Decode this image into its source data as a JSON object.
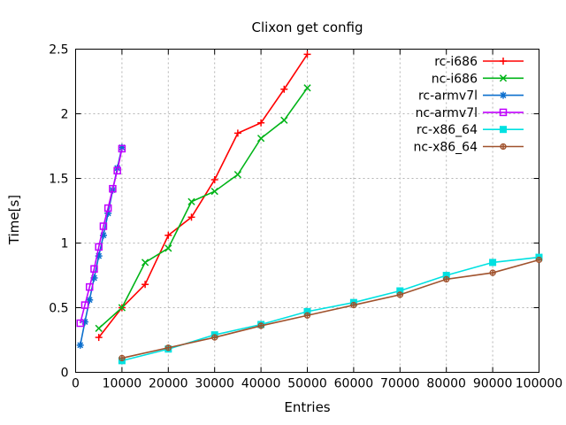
{
  "chart_data": {
    "type": "line",
    "title": "Clixon get config",
    "xlabel": "Entries",
    "ylabel": "Time[s]",
    "xlim": [
      0,
      100000
    ],
    "ylim": [
      0,
      2.5
    ],
    "xticks": [
      0,
      10000,
      20000,
      30000,
      40000,
      50000,
      60000,
      70000,
      80000,
      90000,
      100000
    ],
    "xtick_labels": [
      "0",
      "10000",
      "20000",
      "30000",
      "40000",
      "50000",
      "60000",
      "70000",
      "80000",
      "90000",
      "100000"
    ],
    "yticks": [
      0,
      0.5,
      1,
      1.5,
      2,
      2.5
    ],
    "ytick_labels": [
      "0",
      "0.5",
      "1",
      "1.5",
      "2",
      "2.5"
    ],
    "grid": true,
    "grid_color": "#b4b4b4",
    "axis_color": "#000000",
    "background_color": "#ffffff",
    "legend_position": "top-right-inside",
    "series": [
      {
        "name": "rc-i686",
        "color": "#ff0000",
        "marker": "plus",
        "x": [
          5000,
          10000,
          15000,
          20000,
          25000,
          30000,
          35000,
          40000,
          45000,
          50000
        ],
        "y": [
          0.27,
          0.5,
          0.68,
          1.06,
          1.2,
          1.49,
          1.85,
          1.93,
          2.19,
          2.46
        ]
      },
      {
        "name": "nc-i686",
        "color": "#00b418",
        "marker": "cross",
        "x": [
          5000,
          10000,
          15000,
          20000,
          25000,
          30000,
          35000,
          40000,
          45000,
          50000
        ],
        "y": [
          0.34,
          0.5,
          0.85,
          0.96,
          1.32,
          1.4,
          1.53,
          1.81,
          1.95,
          2.2
        ]
      },
      {
        "name": "rc-armv7l",
        "color": "#0b6fce",
        "marker": "asterisk",
        "x": [
          1000,
          2000,
          3000,
          4000,
          5000,
          6000,
          7000,
          8000,
          9000,
          10000
        ],
        "y": [
          0.21,
          0.39,
          0.56,
          0.73,
          0.9,
          1.06,
          1.23,
          1.41,
          1.58,
          1.74
        ]
      },
      {
        "name": "nc-armv7l",
        "color": "#c000ff",
        "marker": "open-square",
        "x": [
          1000,
          2000,
          3000,
          4000,
          5000,
          6000,
          7000,
          8000,
          9000,
          10000
        ],
        "y": [
          0.38,
          0.52,
          0.66,
          0.8,
          0.97,
          1.13,
          1.27,
          1.42,
          1.56,
          1.73
        ]
      },
      {
        "name": "rc-x86_64",
        "color": "#00e1e1",
        "marker": "filled-square",
        "x": [
          10000,
          20000,
          30000,
          40000,
          50000,
          60000,
          70000,
          80000,
          90000,
          100000
        ],
        "y": [
          0.09,
          0.18,
          0.29,
          0.37,
          0.47,
          0.54,
          0.63,
          0.75,
          0.85,
          0.89
        ]
      },
      {
        "name": "nc-x86_64",
        "color": "#a0522d",
        "marker": "circle-plus",
        "x": [
          10000,
          20000,
          30000,
          40000,
          50000,
          60000,
          70000,
          80000,
          90000,
          100000
        ],
        "y": [
          0.11,
          0.19,
          0.27,
          0.36,
          0.44,
          0.52,
          0.6,
          0.72,
          0.77,
          0.87
        ]
      }
    ]
  }
}
